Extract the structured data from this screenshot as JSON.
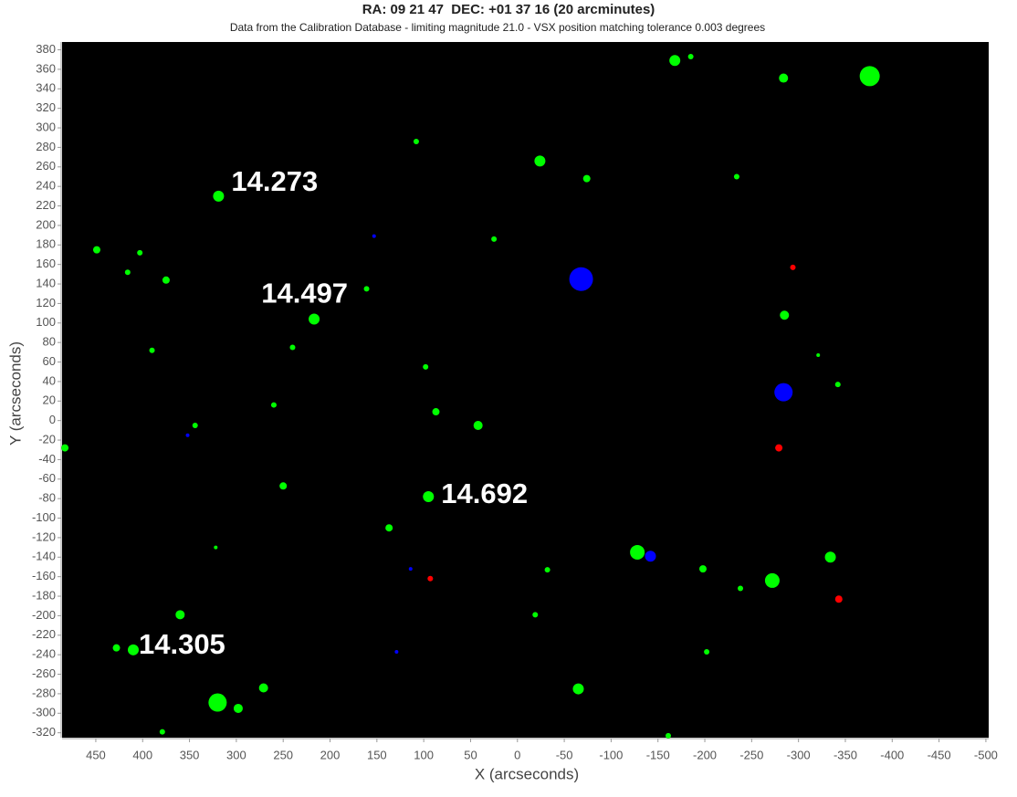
{
  "chart_data": {
    "type": "scatter",
    "title": "RA: 09 21 47  DEC: +01 37 16 (20 arcminutes)",
    "subtitle": "Data from the Calibration Database - limiting magnitude 21.0 - VSX position matching tolerance 0.003 degrees",
    "x_label": "X (arcseconds)",
    "y_label": "Y (arcseconds)",
    "xlim": [
      486,
      -503
    ],
    "ylim": [
      -325,
      388
    ],
    "xticks": [
      450,
      400,
      350,
      300,
      250,
      200,
      150,
      100,
      50,
      0,
      -50,
      -100,
      -150,
      -200,
      -250,
      -300,
      -350,
      -400,
      -450,
      -500
    ],
    "yticks": [
      -320,
      -300,
      -280,
      -260,
      -240,
      -220,
      -200,
      -180,
      -160,
      -140,
      -120,
      -100,
      -80,
      -60,
      -40,
      -20,
      0,
      20,
      40,
      60,
      80,
      100,
      120,
      140,
      160,
      180,
      200,
      220,
      240,
      260,
      280,
      300,
      320,
      340,
      360,
      380
    ],
    "background": "#000000",
    "series": [
      {
        "color": "#00ff00",
        "x": [
          -168,
          -185,
          -284,
          -376,
          108,
          -24,
          -74,
          -234,
          319,
          449,
          403,
          25,
          416,
          375,
          161,
          217,
          -285,
          390,
          240,
          -321,
          98,
          -342,
          260,
          87,
          344,
          42,
          483,
          250,
          95,
          137,
          322,
          -128,
          -334,
          -32,
          -198,
          -272,
          -238,
          360,
          -19,
          428,
          410,
          -202,
          271,
          -65,
          320,
          298,
          379,
          -161
        ],
        "values": [
          369,
          373,
          351,
          353,
          286,
          266,
          248,
          250,
          230,
          175,
          172,
          186,
          152,
          144,
          135,
          104,
          108,
          72,
          75,
          67,
          55,
          37,
          16,
          9,
          -5,
          -5,
          -28,
          -67,
          -78,
          -110,
          -130,
          -135,
          -140,
          -153,
          -152,
          -164,
          -172,
          -199,
          -199,
          -233,
          -235,
          -237,
          -274,
          -275,
          -289,
          -295,
          -319,
          -323
        ],
        "sizes": [
          6,
          3,
          5,
          11,
          3,
          6,
          4,
          3,
          6,
          4,
          3,
          3,
          3,
          4,
          3,
          6,
          5,
          3,
          3,
          2,
          3,
          3,
          3,
          4,
          3,
          5,
          4,
          4,
          6,
          4,
          2,
          8,
          6,
          3,
          4,
          8,
          3,
          5,
          3,
          4,
          6,
          3,
          5,
          6,
          10,
          5,
          3,
          3
        ]
      },
      {
        "color": "#0000ff",
        "x": [
          -68,
          -284,
          -142,
          153,
          352,
          114,
          129
        ],
        "values": [
          145,
          29,
          -139,
          189,
          -15,
          -152,
          -237
        ],
        "sizes": [
          13,
          10,
          6,
          2,
          2,
          2,
          2
        ]
      },
      {
        "color": "#ff0000",
        "x": [
          -294,
          -279,
          93,
          -343
        ],
        "values": [
          157,
          -28,
          -162,
          -183
        ],
        "sizes": [
          3,
          4,
          3,
          4
        ]
      }
    ],
    "annotations": [
      {
        "text": "14.273",
        "x": 319,
        "y": 230
      },
      {
        "text": "14.497",
        "x": 217,
        "y": 104
      },
      {
        "text": "14.692",
        "x": 95,
        "y": -78
      },
      {
        "text": "14.305",
        "x": 410,
        "y": -235
      }
    ]
  }
}
